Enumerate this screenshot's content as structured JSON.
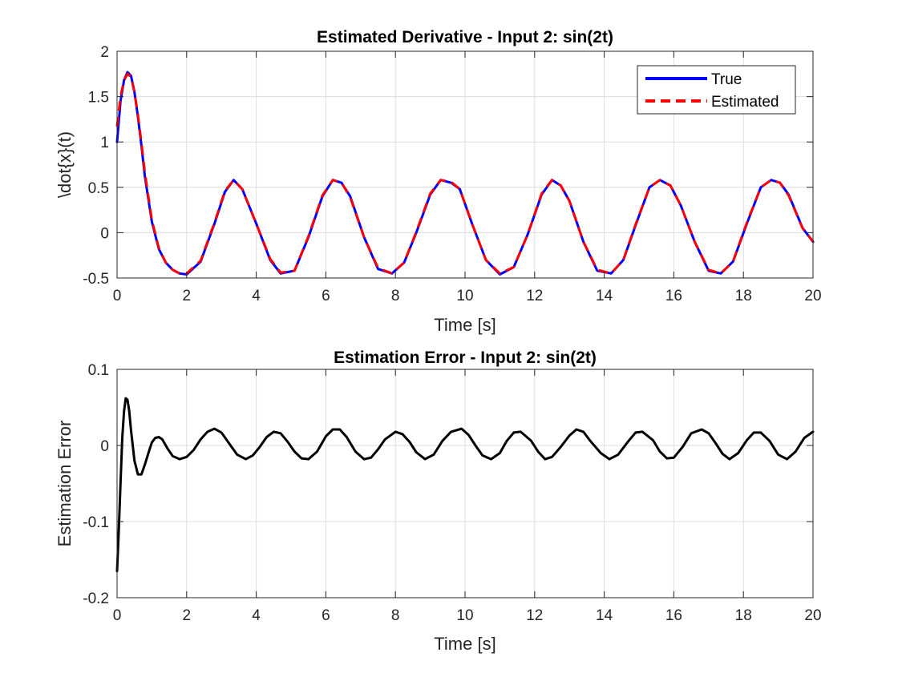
{
  "chart_data": [
    {
      "type": "line",
      "title": "Estimated Derivative - Input 2: sin(2t)",
      "xlabel": "Time [s]",
      "ylabel": "\\dot{x}(t)",
      "xlim": [
        0,
        20
      ],
      "ylim": [
        -0.5,
        2
      ],
      "xticks": [
        0,
        2,
        4,
        6,
        8,
        10,
        12,
        14,
        16,
        18,
        20
      ],
      "yticks": [
        -0.5,
        0,
        0.5,
        1,
        1.5,
        2
      ],
      "xtick_labels": [
        "0",
        "2",
        "4",
        "6",
        "8",
        "10",
        "12",
        "14",
        "16",
        "18",
        "20"
      ],
      "ytick_labels": [
        "-0.5",
        "0",
        "0.5",
        "1",
        "1.5",
        "2"
      ],
      "grid": true,
      "legend_position": "top-right",
      "series": [
        {
          "name": "True",
          "color": "#0000ff",
          "style": "solid",
          "x": [
            0,
            0.1,
            0.2,
            0.3,
            0.4,
            0.5,
            0.6,
            0.7,
            0.8,
            1.0,
            1.2,
            1.4,
            1.6,
            1.8,
            2.0,
            2.4,
            2.8,
            3.1,
            3.35,
            3.6,
            4.0,
            4.4,
            4.7,
            5.1,
            5.5,
            5.9,
            6.2,
            6.45,
            6.7,
            7.1,
            7.5,
            7.9,
            8.25,
            8.6,
            9.0,
            9.3,
            9.6,
            9.85,
            10.2,
            10.6,
            11.0,
            11.4,
            11.8,
            12.2,
            12.5,
            12.75,
            13.0,
            13.4,
            13.8,
            14.2,
            14.55,
            14.9,
            15.3,
            15.6,
            15.9,
            16.2,
            16.6,
            17.0,
            17.35,
            17.7,
            18.1,
            18.5,
            18.8,
            19.05,
            19.3,
            19.7,
            20.0
          ],
          "y": [
            1.0,
            1.45,
            1.68,
            1.77,
            1.73,
            1.55,
            1.28,
            0.96,
            0.62,
            0.12,
            -0.18,
            -0.33,
            -0.41,
            -0.45,
            -0.46,
            -0.32,
            0.1,
            0.45,
            0.58,
            0.48,
            0.1,
            -0.3,
            -0.45,
            -0.42,
            -0.05,
            0.4,
            0.58,
            0.55,
            0.4,
            -0.05,
            -0.4,
            -0.45,
            -0.33,
            0.0,
            0.42,
            0.58,
            0.55,
            0.48,
            0.1,
            -0.3,
            -0.46,
            -0.38,
            -0.02,
            0.42,
            0.58,
            0.52,
            0.35,
            -0.1,
            -0.42,
            -0.45,
            -0.3,
            0.08,
            0.5,
            0.58,
            0.52,
            0.3,
            -0.1,
            -0.42,
            -0.45,
            -0.32,
            0.1,
            0.5,
            0.58,
            0.55,
            0.42,
            0.05,
            -0.1
          ]
        },
        {
          "name": "Estimated",
          "color": "#ff0000",
          "style": "dashed",
          "x": [
            0,
            0.1,
            0.2,
            0.3,
            0.4,
            0.5,
            0.6,
            0.7,
            0.8,
            1.0,
            1.2,
            1.4,
            1.6,
            1.8,
            2.0,
            2.4,
            2.8,
            3.1,
            3.35,
            3.6,
            4.0,
            4.4,
            4.7,
            5.1,
            5.5,
            5.9,
            6.2,
            6.45,
            6.7,
            7.1,
            7.5,
            7.9,
            8.25,
            8.6,
            9.0,
            9.3,
            9.6,
            9.85,
            10.2,
            10.6,
            11.0,
            11.4,
            11.8,
            12.2,
            12.5,
            12.75,
            13.0,
            13.4,
            13.8,
            14.2,
            14.55,
            14.9,
            15.3,
            15.6,
            15.9,
            16.2,
            16.6,
            17.0,
            17.35,
            17.7,
            18.1,
            18.5,
            18.8,
            19.05,
            19.3,
            19.7,
            20.0
          ],
          "y": [
            1.17,
            1.5,
            1.68,
            1.75,
            1.72,
            1.55,
            1.3,
            0.99,
            0.66,
            0.14,
            -0.17,
            -0.33,
            -0.41,
            -0.45,
            -0.45,
            -0.31,
            0.11,
            0.46,
            0.58,
            0.48,
            0.1,
            -0.29,
            -0.44,
            -0.42,
            -0.04,
            0.41,
            0.58,
            0.55,
            0.39,
            -0.05,
            -0.39,
            -0.45,
            -0.33,
            0.01,
            0.43,
            0.58,
            0.56,
            0.48,
            0.1,
            -0.3,
            -0.45,
            -0.38,
            -0.02,
            0.43,
            0.58,
            0.52,
            0.35,
            -0.1,
            -0.41,
            -0.45,
            -0.3,
            0.09,
            0.5,
            0.58,
            0.52,
            0.3,
            -0.1,
            -0.41,
            -0.45,
            -0.32,
            0.11,
            0.5,
            0.58,
            0.55,
            0.41,
            0.05,
            -0.1
          ]
        }
      ]
    },
    {
      "type": "line",
      "title": "Estimation Error - Input 2: sin(2t)",
      "xlabel": "Time [s]",
      "ylabel": "Estimation Error",
      "xlim": [
        0,
        20
      ],
      "ylim": [
        -0.2,
        0.1
      ],
      "xticks": [
        0,
        2,
        4,
        6,
        8,
        10,
        12,
        14,
        16,
        18,
        20
      ],
      "yticks": [
        -0.2,
        -0.1,
        0,
        0.1
      ],
      "xtick_labels": [
        "0",
        "2",
        "4",
        "6",
        "8",
        "10",
        "12",
        "14",
        "16",
        "18",
        "20"
      ],
      "ytick_labels": [
        "-0.2",
        "-0.1",
        "0",
        "0.1"
      ],
      "grid": true,
      "series": [
        {
          "color": "#000000",
          "style": "solid",
          "x": [
            0,
            0.05,
            0.1,
            0.15,
            0.2,
            0.25,
            0.3,
            0.35,
            0.4,
            0.5,
            0.6,
            0.7,
            0.8,
            0.9,
            1.0,
            1.1,
            1.2,
            1.3,
            1.45,
            1.6,
            1.8,
            2.0,
            2.2,
            2.4,
            2.6,
            2.8,
            3.0,
            3.2,
            3.45,
            3.7,
            3.9,
            4.1,
            4.3,
            4.5,
            4.7,
            4.9,
            5.1,
            5.3,
            5.5,
            5.75,
            6.0,
            6.2,
            6.4,
            6.6,
            6.85,
            7.1,
            7.3,
            7.5,
            7.7,
            8.0,
            8.2,
            8.4,
            8.6,
            8.85,
            9.1,
            9.35,
            9.6,
            9.9,
            10.1,
            10.3,
            10.5,
            10.75,
            11.0,
            11.2,
            11.4,
            11.6,
            11.9,
            12.1,
            12.3,
            12.5,
            12.75,
            13.0,
            13.2,
            13.4,
            13.6,
            13.9,
            14.15,
            14.4,
            14.7,
            14.9,
            15.1,
            15.4,
            15.6,
            15.8,
            16.0,
            16.25,
            16.5,
            16.8,
            17.0,
            17.2,
            17.4,
            17.6,
            17.85,
            18.1,
            18.3,
            18.5,
            18.75,
            19.0,
            19.25,
            19.5,
            19.75,
            20.0
          ],
          "y": [
            -0.165,
            -0.11,
            -0.05,
            0.01,
            0.045,
            0.062,
            0.06,
            0.045,
            0.02,
            -0.02,
            -0.038,
            -0.038,
            -0.025,
            -0.01,
            0.004,
            0.01,
            0.011,
            0.008,
            -0.004,
            -0.014,
            -0.018,
            -0.015,
            -0.006,
            0.008,
            0.018,
            0.022,
            0.017,
            0.004,
            -0.012,
            -0.018,
            -0.013,
            -0.002,
            0.011,
            0.018,
            0.016,
            0.005,
            -0.008,
            -0.017,
            -0.018,
            -0.008,
            0.012,
            0.021,
            0.021,
            0.011,
            -0.008,
            -0.018,
            -0.016,
            -0.005,
            0.008,
            0.018,
            0.015,
            0.005,
            -0.009,
            -0.018,
            -0.012,
            0.006,
            0.018,
            0.022,
            0.014,
            0.0,
            -0.013,
            -0.018,
            -0.01,
            0.006,
            0.017,
            0.018,
            0.006,
            -0.008,
            -0.018,
            -0.015,
            -0.002,
            0.013,
            0.021,
            0.018,
            0.006,
            -0.01,
            -0.018,
            -0.012,
            0.006,
            0.017,
            0.018,
            0.007,
            -0.008,
            -0.017,
            -0.016,
            -0.002,
            0.016,
            0.021,
            0.016,
            0.003,
            -0.011,
            -0.018,
            -0.01,
            0.007,
            0.017,
            0.017,
            0.006,
            -0.012,
            -0.018,
            -0.008,
            0.01,
            0.018
          ]
        }
      ]
    }
  ]
}
